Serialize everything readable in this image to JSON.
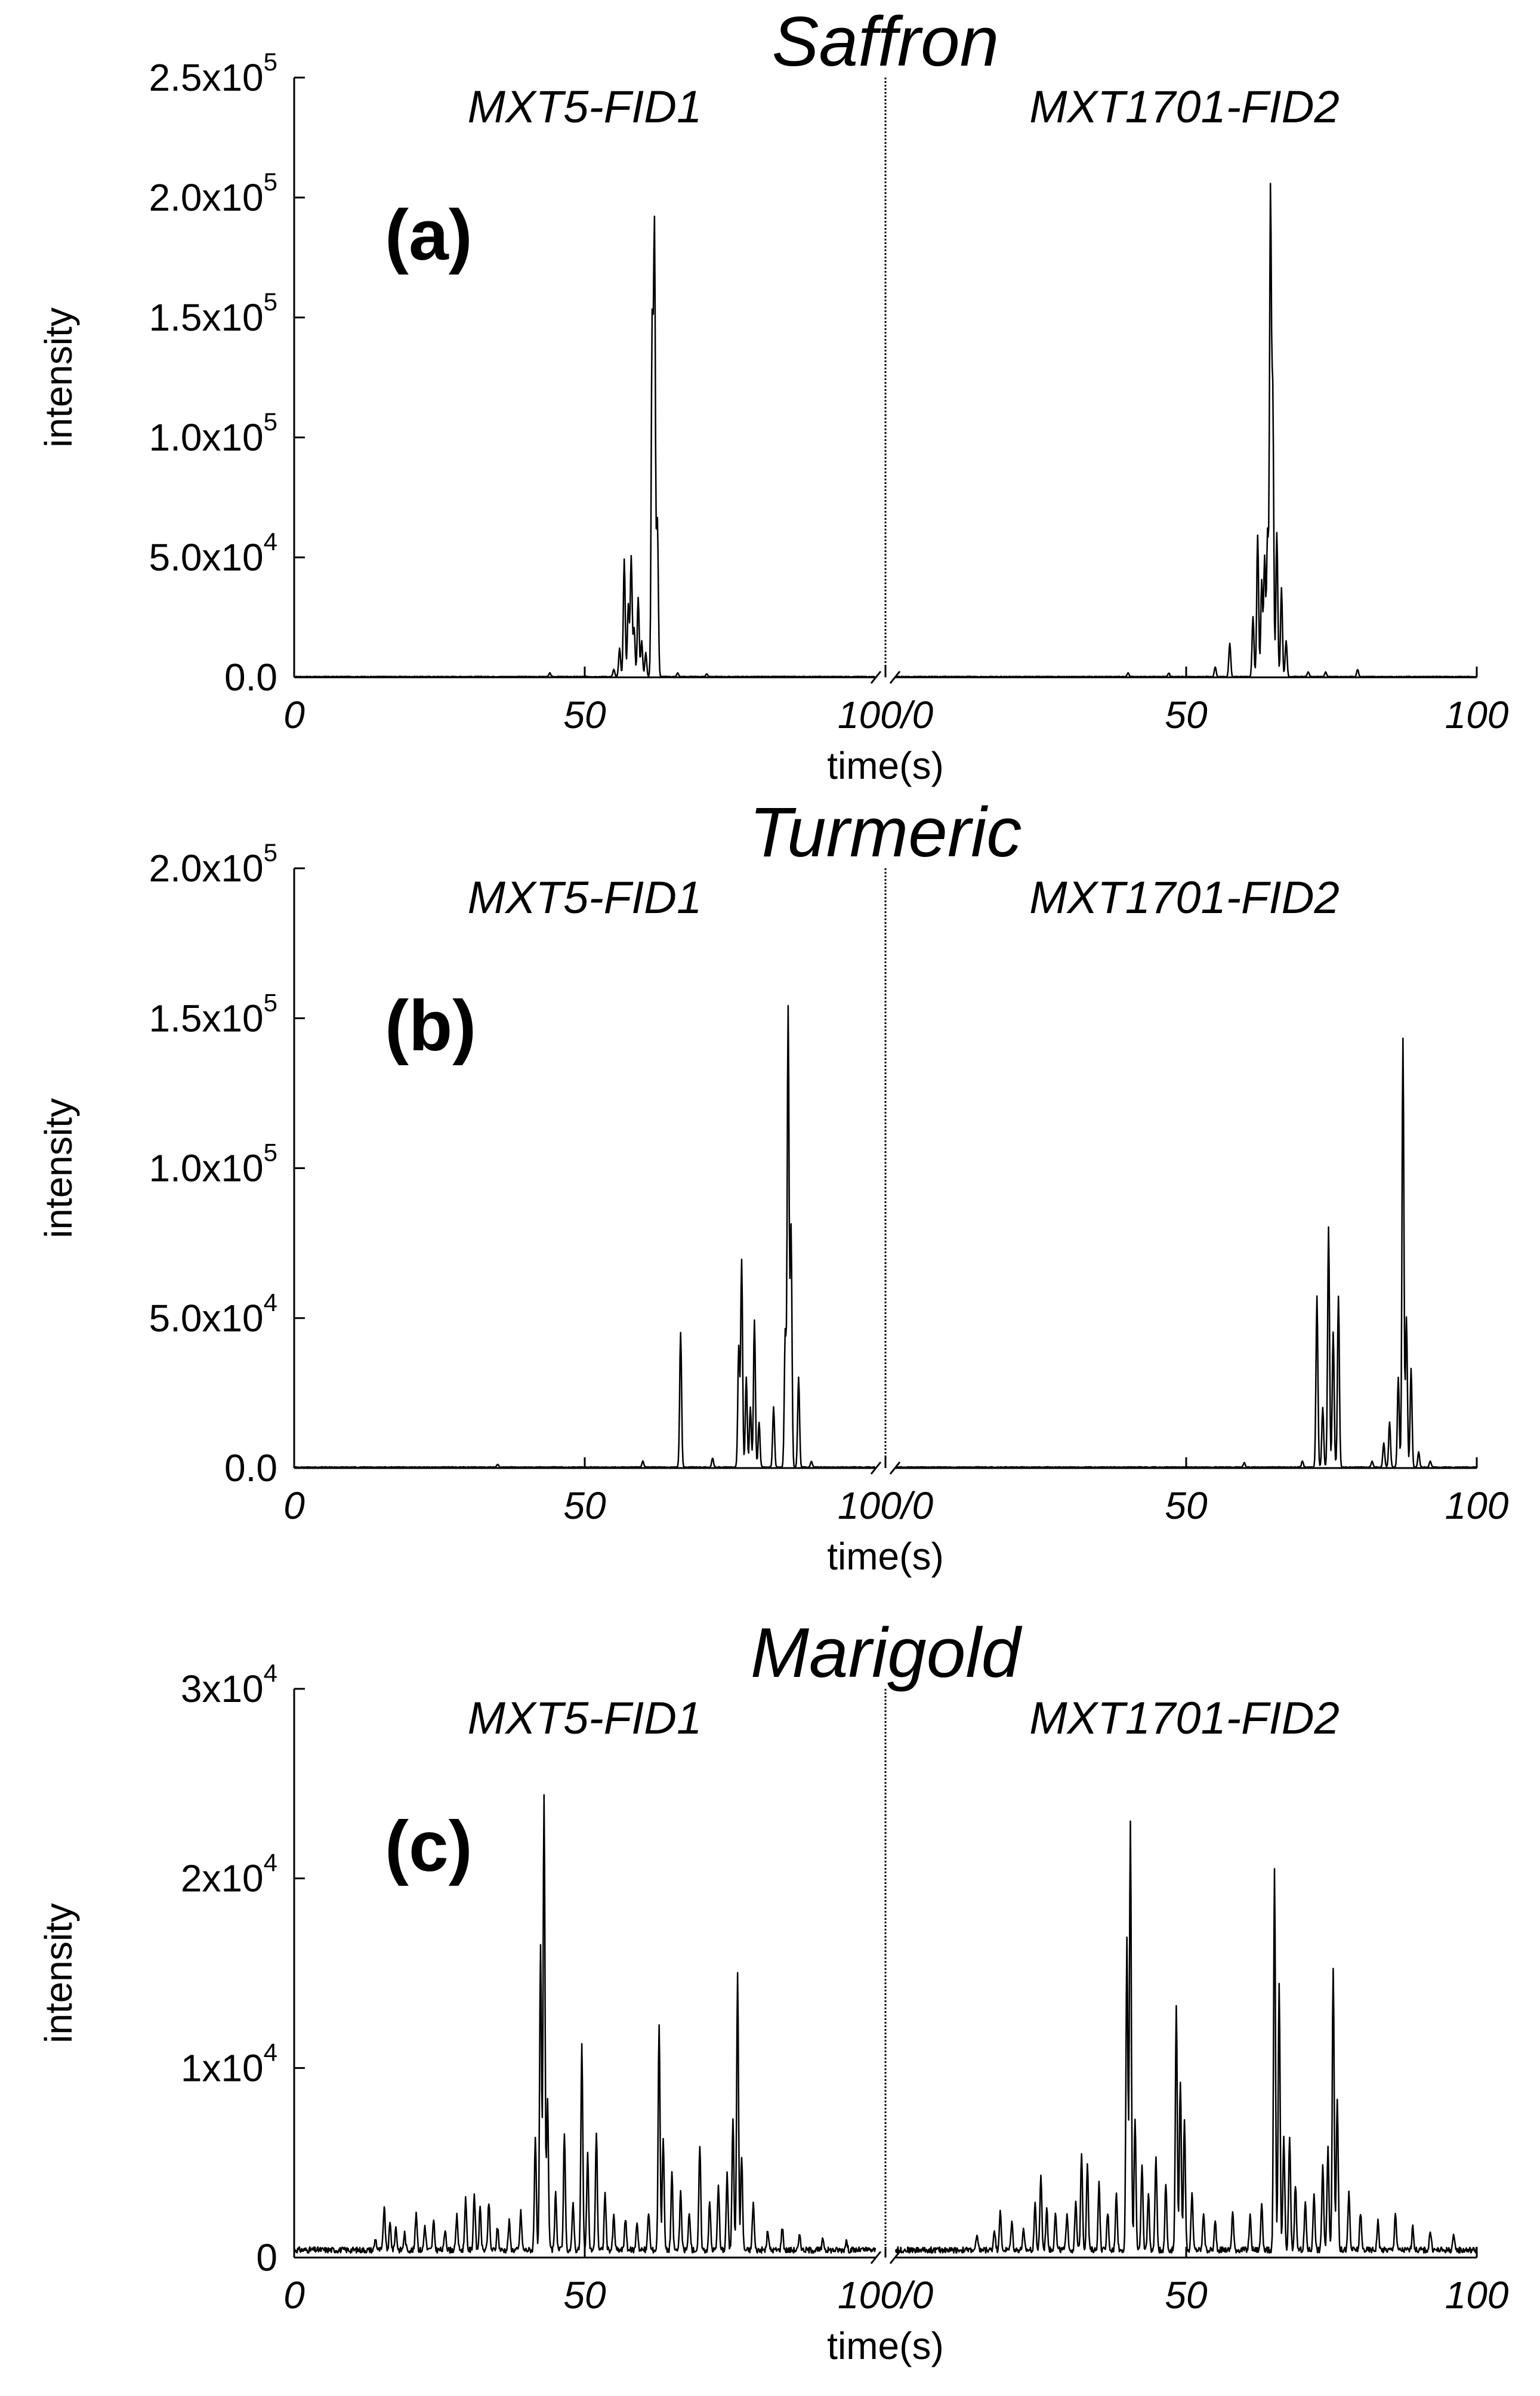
{
  "chart_data": [
    {
      "type": "line",
      "title": "Saffron",
      "panel_label": "(a)",
      "xlabel": "time(s)",
      "ylabel": "intensity",
      "ylim": [
        0,
        250000
      ],
      "ytick_labels": [
        {
          "value": 0,
          "mant": "0.0",
          "exp": ""
        },
        {
          "value": 50000,
          "mant": "5.0x10",
          "exp": "4"
        },
        {
          "value": 100000,
          "mant": "1.0x10",
          "exp": "5"
        },
        {
          "value": 150000,
          "mant": "1.5x10",
          "exp": "5"
        },
        {
          "value": 200000,
          "mant": "2.0x10",
          "exp": "5"
        },
        {
          "value": 250000,
          "mant": "2.5x10",
          "exp": "5"
        }
      ],
      "xtick_labels": [
        "0",
        "50",
        "100/0",
        "50",
        "100"
      ],
      "baseline": 300,
      "series": [
        {
          "name": "MXT5-FID1",
          "xlim": [
            0,
            100
          ],
          "peaks": [
            [
              44,
              1500
            ],
            [
              55,
              3000
            ],
            [
              56,
              12000
            ],
            [
              56.8,
              49000
            ],
            [
              57.5,
              30000
            ],
            [
              58,
              50000
            ],
            [
              58.5,
              20000
            ],
            [
              59.2,
              33000
            ],
            [
              59.8,
              15000
            ],
            [
              60.5,
              10000
            ],
            [
              61.6,
              145000
            ],
            [
              62,
              185000
            ],
            [
              62.5,
              65000
            ],
            [
              66,
              1500
            ],
            [
              71,
              1200
            ]
          ]
        },
        {
          "name": "MXT1701-FID2",
          "xlim": [
            0,
            100
          ],
          "peaks": [
            [
              40,
              1500
            ],
            [
              47,
              1500
            ],
            [
              55,
              4000
            ],
            [
              57.5,
              14000
            ],
            [
              61.5,
              25000
            ],
            [
              62.3,
              59000
            ],
            [
              63,
              40000
            ],
            [
              63.5,
              50000
            ],
            [
              64,
              60000
            ],
            [
              64.5,
              200000
            ],
            [
              64.9,
              115000
            ],
            [
              65.6,
              60000
            ],
            [
              66.4,
              37000
            ],
            [
              67.2,
              15000
            ],
            [
              71,
              2000
            ],
            [
              74,
              2000
            ],
            [
              79.5,
              3000
            ]
          ]
        }
      ]
    },
    {
      "type": "line",
      "title": "Turmeric",
      "panel_label": "(b)",
      "xlabel": "time(s)",
      "ylabel": "intensity",
      "ylim": [
        0,
        200000
      ],
      "ytick_labels": [
        {
          "value": 0,
          "mant": "0.0",
          "exp": ""
        },
        {
          "value": 50000,
          "mant": "5.0x10",
          "exp": "4"
        },
        {
          "value": 100000,
          "mant": "1.0x10",
          "exp": "5"
        },
        {
          "value": 150000,
          "mant": "1.5x10",
          "exp": "5"
        },
        {
          "value": 200000,
          "mant": "2.0x10",
          "exp": "5"
        }
      ],
      "xtick_labels": [
        "0",
        "50",
        "100/0",
        "50",
        "100"
      ],
      "baseline": 300,
      "series": [
        {
          "name": "MXT5-FID1",
          "xlim": [
            0,
            100
          ],
          "peaks": [
            [
              35,
              1000
            ],
            [
              60,
              2000
            ],
            [
              66.5,
              45000
            ],
            [
              72,
              3000
            ],
            [
              76.5,
              40000
            ],
            [
              77,
              69000
            ],
            [
              77.8,
              30000
            ],
            [
              78.5,
              20000
            ],
            [
              79.2,
              49000
            ],
            [
              80,
              15000
            ],
            [
              82.5,
              20000
            ],
            [
              84.5,
              45000
            ],
            [
              85,
              153000
            ],
            [
              85.5,
              80000
            ],
            [
              86.8,
              30000
            ],
            [
              89,
              2000
            ]
          ]
        },
        {
          "name": "MXT1701-FID2",
          "xlim": [
            0,
            100
          ],
          "peaks": [
            [
              60,
              1500
            ],
            [
              70,
              2000
            ],
            [
              72.5,
              57000
            ],
            [
              73.5,
              20000
            ],
            [
              74.5,
              80000
            ],
            [
              75.3,
              45000
            ],
            [
              76.2,
              57000
            ],
            [
              82,
              2000
            ],
            [
              84,
              8000
            ],
            [
              85,
              15000
            ],
            [
              86.5,
              30000
            ],
            [
              87.3,
              143000
            ],
            [
              87.9,
              50000
            ],
            [
              88.7,
              33000
            ],
            [
              90,
              5000
            ],
            [
              92,
              2000
            ]
          ]
        }
      ]
    },
    {
      "type": "line",
      "title": "Marigold",
      "panel_label": "(c)",
      "xlabel": "time(s)",
      "ylabel": "intensity",
      "ylim": [
        0,
        30000
      ],
      "ytick_labels": [
        {
          "value": 0,
          "mant": "0",
          "exp": ""
        },
        {
          "value": 10000,
          "mant": "1x10",
          "exp": "4"
        },
        {
          "value": 20000,
          "mant": "2x10",
          "exp": "4"
        },
        {
          "value": 30000,
          "mant": "3x10",
          "exp": "4"
        }
      ],
      "xtick_labels": [
        "0",
        "50",
        "100/0",
        "50",
        "100"
      ],
      "baseline": 400,
      "series": [
        {
          "name": "MXT5-FID1",
          "xlim": [
            0,
            100
          ],
          "peaks": [
            [
              14,
              600
            ],
            [
              15.5,
              2300
            ],
            [
              16.5,
              1400
            ],
            [
              17.5,
              1200
            ],
            [
              19,
              900
            ],
            [
              21,
              2000
            ],
            [
              22.5,
              1300
            ],
            [
              24,
              1500
            ],
            [
              26,
              1100
            ],
            [
              28,
              1800
            ],
            [
              29.5,
              2700
            ],
            [
              31,
              3000
            ],
            [
              32,
              2200
            ],
            [
              33.5,
              2500
            ],
            [
              35,
              1200
            ],
            [
              37,
              1500
            ],
            [
              39,
              2000
            ],
            [
              41.5,
              6000
            ],
            [
              42.4,
              16000
            ],
            [
              43,
              24000
            ],
            [
              43.6,
              8000
            ],
            [
              45,
              3000
            ],
            [
              46.5,
              6000
            ],
            [
              48,
              2500
            ],
            [
              49.5,
              10800
            ],
            [
              50.5,
              5000
            ],
            [
              52,
              6200
            ],
            [
              53.5,
              3000
            ],
            [
              55,
              1800
            ],
            [
              57,
              1700
            ],
            [
              59,
              1500
            ],
            [
              61,
              2000
            ],
            [
              62.8,
              12000
            ],
            [
              63.5,
              6000
            ],
            [
              65,
              4000
            ],
            [
              66.5,
              3000
            ],
            [
              68,
              2000
            ],
            [
              69.8,
              5500
            ],
            [
              71.5,
              2500
            ],
            [
              73,
              3500
            ],
            [
              74.5,
              4000
            ],
            [
              75.5,
              7000
            ],
            [
              76.3,
              14500
            ],
            [
              77,
              5000
            ],
            [
              79,
              2500
            ],
            [
              81.5,
              1000
            ],
            [
              84,
              1200
            ],
            [
              87,
              800
            ],
            [
              91,
              600
            ],
            [
              95,
              500
            ]
          ]
        },
        {
          "name": "MXT1701-FID2",
          "xlim": [
            0,
            100
          ],
          "peaks": [
            [
              14,
              700
            ],
            [
              17,
              1100
            ],
            [
              18,
              2000
            ],
            [
              20,
              1500
            ],
            [
              22,
              1000
            ],
            [
              24,
              2500
            ],
            [
              25,
              4000
            ],
            [
              26,
              2200
            ],
            [
              27.5,
              2000
            ],
            [
              29.5,
              2000
            ],
            [
              31,
              2500
            ],
            [
              32,
              5200
            ],
            [
              33,
              4500
            ],
            [
              35,
              3500
            ],
            [
              36.5,
              2000
            ],
            [
              38,
              3000
            ],
            [
              39.8,
              16500
            ],
            [
              40.4,
              22500
            ],
            [
              41.2,
              7000
            ],
            [
              42.4,
              4500
            ],
            [
              43.5,
              3000
            ],
            [
              44.8,
              5000
            ],
            [
              46.5,
              3500
            ],
            [
              48.3,
              13000
            ],
            [
              49,
              9000
            ],
            [
              49.7,
              7000
            ],
            [
              51,
              3000
            ],
            [
              53,
              2000
            ],
            [
              55,
              1500
            ],
            [
              58,
              2000
            ],
            [
              61,
              1800
            ],
            [
              63,
              2500
            ],
            [
              65.2,
              20000
            ],
            [
              66,
              14000
            ],
            [
              66.8,
              6000
            ],
            [
              67.8,
              6000
            ],
            [
              68.8,
              3500
            ],
            [
              70.5,
              2500
            ],
            [
              72,
              3000
            ],
            [
              73.5,
              4500
            ],
            [
              74.4,
              5500
            ],
            [
              75.3,
              15000
            ],
            [
              76,
              8000
            ],
            [
              78,
              3000
            ],
            [
              80,
              2000
            ],
            [
              83,
              1500
            ],
            [
              86,
              2000
            ],
            [
              89,
              1200
            ],
            [
              92,
              1000
            ],
            [
              96,
              700
            ]
          ]
        }
      ]
    }
  ]
}
